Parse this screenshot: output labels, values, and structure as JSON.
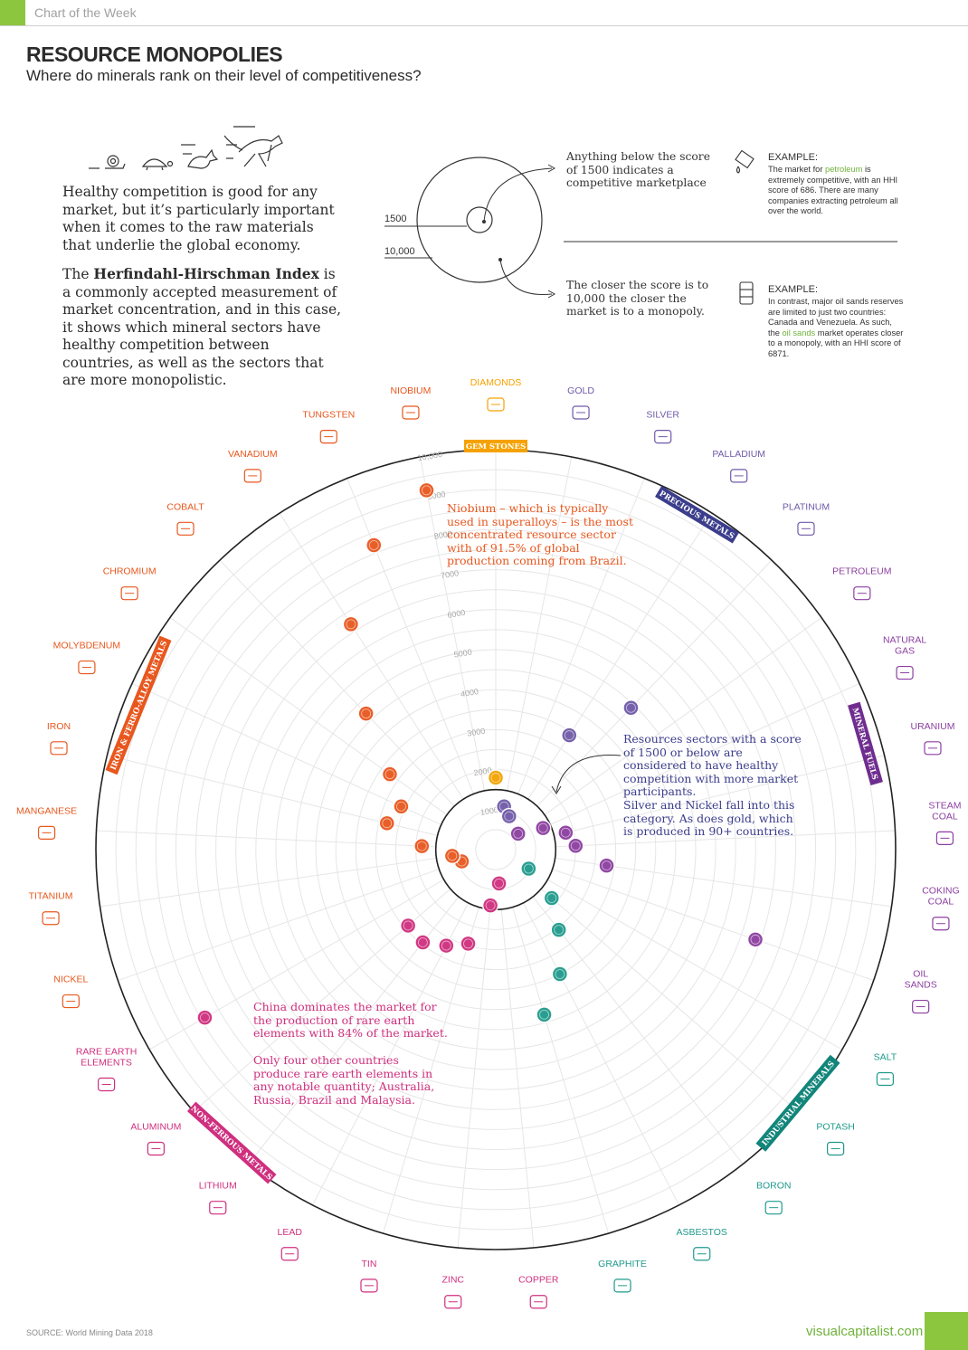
{
  "header": {
    "tag": "Chart of the Week"
  },
  "title": "RESOURCE MONOPOLIES",
  "subtitle": "Where do minerals rank on their level of competitiveness?",
  "intro": {
    "p1": "Healthy competition is good for any market, but it’s particularly important when it comes to the raw materials that underlie the global economy.",
    "p2_pre": "The ",
    "p2_bold": "Herfindahl-Hirschman Index",
    "p2_post": " is a commonly accepted measurement of market concentration, and in this case, it shows which mineral sectors have healthy competition between countries, as well as the sectors that are more monopolistic."
  },
  "legend": {
    "label_1500": "1500",
    "label_10000": "10,000",
    "note_top": "Anything below the score of 1500 indicates a competitive marketplace",
    "note_bottom": "The closer the score is to 10,000 the closer the market is to a monopoly."
  },
  "examples": [
    {
      "head": "EXAMPLE:",
      "pre": "The market for ",
      "hl": "petroleum",
      "post": " is extremely competitive, with an HHI score of 686. There are many companies extracting petroleum all over the world."
    },
    {
      "head": "EXAMPLE:",
      "pre": "In contrast, major oil sands reserves are limited to just two countries: Canada and Venezuela. As such, the ",
      "hl": "oil sands",
      "post": " market operates closer to a monopoly, with an HHI score of 6871."
    }
  ],
  "annotations": {
    "niobium": "Niobium – which is typically used in superalloys – is the most concentrated resource sector with of 91.5% of global production coming from Brazil.",
    "healthy_1": "Resources sectors with a score of 1500 or below are considered to have healthy competition with more market participants.",
    "healthy_2": "Silver and Nickel fall into this category. As does gold, which is produced in 90+ countries.",
    "china_1": "China dominates the market for the production of rare earth elements with 84% of the market.",
    "china_2": "Only four other countries produce rare earth elements in any notable quantity; Australia, Russia, Brazil and Malaysia."
  },
  "colors": {
    "iron": "#e8571e",
    "precious": "#6f5aa8",
    "fuels": "#8c3fa0",
    "industrial": "#1f9a8c",
    "nonferrous": "#cf2f7e",
    "gem": "#f5a200",
    "sector_precious": "#3b3d8c",
    "sector_fuels": "#6f2d8f",
    "sector_industrial": "#12857a",
    "sector_iron": "#e8571e",
    "sector_nonferrous": "#cf2f7e",
    "sector_gem": "#f5a200",
    "accent": "#8cc63f"
  },
  "sectors": [
    {
      "label": "GEM STONES",
      "color_key": "sector_gem"
    },
    {
      "label": "PRECIOUS METALS",
      "color_key": "sector_precious"
    },
    {
      "label": "MINERAL FUELS",
      "color_key": "sector_fuels"
    },
    {
      "label": "INDUSTRIAL MINERALS",
      "color_key": "sector_industrial"
    },
    {
      "label": "NON-FERROUS METALS",
      "color_key": "sector_nonferrous"
    },
    {
      "label": "IRON & FERRO-ALLOY METALS",
      "color_key": "sector_iron"
    }
  ],
  "chart_data": {
    "type": "radial-scatter",
    "title": "RESOURCE MONOPOLIES",
    "radial_axis": {
      "label": "Herfindahl-Hirschman Index",
      "range": [
        0,
        10000
      ],
      "ticks": [
        1000,
        2000,
        3000,
        4000,
        5000,
        6000,
        7000,
        8000,
        9000,
        "10,000"
      ],
      "threshold": 1500
    },
    "categories": [
      "DIAMONDS",
      "GOLD",
      "SILVER",
      "PALLADIUM",
      "PLATINUM",
      "PETROLEUM",
      "NATURAL GAS",
      "URANIUM",
      "STEAM COAL",
      "COKING COAL",
      "OIL SANDS",
      "SALT",
      "POTASH",
      "BORON",
      "ASBESTOS",
      "GRAPHITE",
      "COPPER",
      "ZINC",
      "TIN",
      "LEAD",
      "LITHIUM",
      "ALUMINUM",
      "RARE EARTH ELEMENTS",
      "NICKEL",
      "TITANIUM",
      "MANGANESE",
      "IRON",
      "MOLYBDENUM",
      "CHROMIUM",
      "COBALT",
      "VANADIUM",
      "TUNGSTEN",
      "NIOBIUM"
    ],
    "label_lines": {
      "NATURAL GAS": [
        "NATURAL",
        "GAS"
      ],
      "STEAM COAL": [
        "STEAM",
        "COAL"
      ],
      "COKING COAL": [
        "COKING",
        "COAL"
      ],
      "OIL SANDS": [
        "OIL",
        "SANDS"
      ],
      "RARE EARTH ELEMENTS": [
        "RARE EARTH",
        "ELEMENTS"
      ]
    },
    "groups": [
      "gem",
      "precious",
      "precious",
      "precious",
      "precious",
      "fuels",
      "fuels",
      "fuels",
      "fuels",
      "fuels",
      "fuels",
      "industrial",
      "industrial",
      "industrial",
      "industrial",
      "industrial",
      "nonferrous",
      "nonferrous",
      "nonferrous",
      "nonferrous",
      "nonferrous",
      "nonferrous",
      "nonferrous",
      "iron",
      "iron",
      "iron",
      "iron",
      "iron",
      "iron",
      "iron",
      "iron",
      "iron",
      "iron"
    ],
    "values": [
      1800,
      1100,
      900,
      3400,
      4900,
      686,
      1300,
      1800,
      2000,
      2800,
      6871,
      950,
      1850,
      2550,
      3500,
      4300,
      850,
      1400,
      2450,
      2700,
      2950,
      2900,
      8400,
      900,
      1100,
      1850,
      2800,
      2600,
      3250,
      4700,
      6700,
      8200,
      9150
    ]
  }
}
